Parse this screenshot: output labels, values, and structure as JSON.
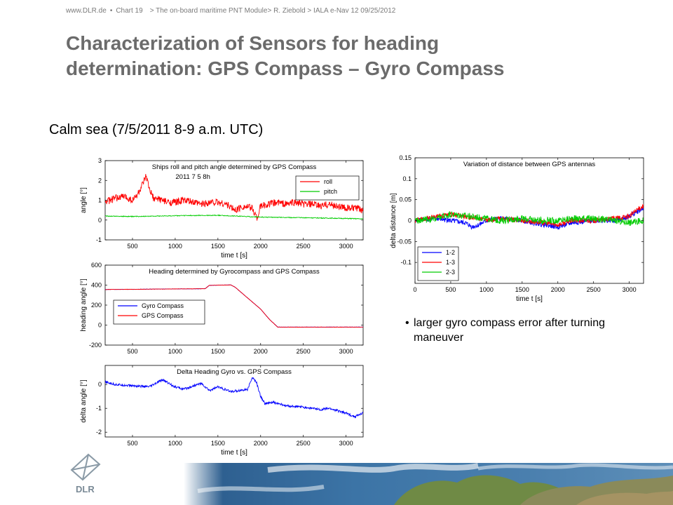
{
  "header": {
    "url": "www.DLR.de",
    "chart": "Chart 19",
    "breadcrumb": "> The on-board maritime PNT Module> R. Ziebold > IALA e-Nav 12 09/25/2012"
  },
  "title": {
    "line1": "Characterization of Sensors for heading",
    "line2": "determination: GPS Compass – Gyro Compass"
  },
  "subtitle": "Calm sea (7/5/2011 8-9 a.m. UTC)",
  "note": {
    "line1": "larger gyro compass error after turning",
    "line2": "maneuver"
  },
  "logo": {
    "text": "DLR",
    "icon": "dlr-logo-icon"
  },
  "colors": {
    "red": "#ff0000",
    "green": "#00cc00",
    "blue": "#0000ff",
    "title_gray": "#6b6b6b"
  },
  "chart_data": [
    {
      "id": "roll_pitch",
      "type": "line",
      "title": "Ships roll and pitch angle determined by GPS Compass",
      "annotation": "2011 7 5 8h",
      "xlabel": "time t [s]",
      "ylabel": "angle [°]",
      "xlim": [
        180,
        3200
      ],
      "ylim": [
        -1,
        3
      ],
      "xticks": [
        500,
        1000,
        1500,
        2000,
        2500,
        3000
      ],
      "yticks": [
        -1,
        0,
        1,
        2,
        3
      ],
      "legend": "right",
      "grid": false,
      "series": [
        {
          "name": "roll",
          "color": "#ff0000",
          "noise": 0.18,
          "x": [
            180,
            300,
            400,
            500,
            560,
            620,
            660,
            700,
            760,
            800,
            900,
            1000,
            1100,
            1200,
            1300,
            1400,
            1500,
            1600,
            1700,
            1800,
            1900,
            1960,
            2000,
            2100,
            2200,
            2300,
            2400,
            2500,
            2600,
            2700,
            2800,
            2900,
            3000,
            3100,
            3200
          ],
          "y": [
            0.9,
            1.1,
            1.2,
            1.0,
            1.3,
            1.8,
            2.2,
            1.5,
            1.0,
            1.1,
            0.9,
            0.9,
            1.0,
            0.9,
            0.8,
            0.9,
            0.9,
            0.8,
            0.5,
            0.7,
            0.6,
            0.1,
            0.7,
            0.8,
            0.9,
            0.8,
            0.9,
            0.8,
            0.8,
            0.7,
            0.8,
            0.7,
            0.6,
            0.6,
            0.5
          ]
        },
        {
          "name": "pitch",
          "color": "#00cc00",
          "noise": 0.02,
          "x": [
            180,
            500,
            1000,
            1500,
            2000,
            2500,
            3000,
            3200
          ],
          "y": [
            0.2,
            0.18,
            0.22,
            0.24,
            0.15,
            0.12,
            0.08,
            0.06
          ]
        }
      ]
    },
    {
      "id": "heading",
      "type": "line",
      "title": "Heading determined by Gyrocompass and GPS Compass",
      "xlabel": "",
      "ylabel": "heading angle [°]",
      "xlim": [
        180,
        3200
      ],
      "ylim": [
        -200,
        600
      ],
      "xticks": [
        500,
        1000,
        1500,
        2000,
        2500,
        3000
      ],
      "yticks": [
        -200,
        0,
        200,
        400,
        600
      ],
      "legend": "left",
      "grid": false,
      "series": [
        {
          "name": "Gyro Compass",
          "color": "#0000ff",
          "noise": 1.5,
          "x": [
            180,
            500,
            1000,
            1350,
            1400,
            1650,
            1700,
            2000,
            2100,
            2200,
            2500,
            3000,
            3200
          ],
          "y": [
            356,
            358,
            362,
            364,
            398,
            402,
            380,
            160,
            60,
            -20,
            -20,
            -20,
            -20
          ]
        },
        {
          "name": "GPS Compass",
          "color": "#ff0000",
          "noise": 1.5,
          "x": [
            180,
            500,
            1000,
            1350,
            1400,
            1650,
            1700,
            2000,
            2100,
            2200,
            2500,
            3000,
            3200
          ],
          "y": [
            356,
            358,
            362,
            364,
            398,
            402,
            380,
            160,
            60,
            -20,
            -20,
            -20,
            -20
          ]
        }
      ]
    },
    {
      "id": "delta_heading",
      "type": "line",
      "title": "Delta Heading Gyro vs. GPS Compass",
      "xlabel": "time t [s]",
      "ylabel": "delta angle [°]",
      "xlim": [
        180,
        3200
      ],
      "ylim": [
        -2.2,
        0.8
      ],
      "xticks": [
        500,
        1000,
        1500,
        2000,
        2500,
        3000
      ],
      "yticks": [
        -2,
        -1,
        0
      ],
      "legend": "none",
      "grid": false,
      "series": [
        {
          "name": "",
          "color": "#0000ff",
          "noise": 0.05,
          "x": [
            180,
            300,
            500,
            700,
            850,
            1000,
            1100,
            1300,
            1400,
            1500,
            1650,
            1750,
            1850,
            1900,
            1950,
            2000,
            2050,
            2150,
            2300,
            2500,
            2700,
            2800,
            2900,
            3000,
            3100,
            3200
          ],
          "y": [
            0.1,
            0.0,
            -0.05,
            -0.1,
            0.2,
            -0.1,
            -0.2,
            0.05,
            -0.25,
            -0.1,
            -0.3,
            -0.25,
            -0.2,
            0.3,
            0.1,
            -0.5,
            -0.8,
            -0.75,
            -0.9,
            -0.95,
            -1.05,
            -1.0,
            -1.1,
            -1.2,
            -1.35,
            -1.2
          ]
        }
      ]
    },
    {
      "id": "antenna_distance",
      "type": "line",
      "title": "Variation of distance between GPS antennas",
      "xlabel": "time t [s]",
      "ylabel": "delta distance [m]",
      "xlim": [
        0,
        3200
      ],
      "ylim": [
        -0.15,
        0.15
      ],
      "xticks": [
        0,
        500,
        1000,
        1500,
        2000,
        2500,
        3000
      ],
      "yticks": [
        -0.1,
        -0.05,
        0,
        0.05,
        0.1,
        0.15
      ],
      "legend": "bottom-left",
      "grid": false,
      "series": [
        {
          "name": "1-2",
          "color": "#0000ff",
          "noise": 0.006,
          "x": [
            0,
            300,
            500,
            700,
            800,
            900,
            1000,
            1200,
            1500,
            1800,
            2000,
            2200,
            2500,
            2800,
            3000,
            3100,
            3200
          ],
          "y": [
            0.0,
            0.005,
            0.0,
            -0.005,
            -0.015,
            -0.01,
            0.0,
            0.005,
            0.0,
            -0.01,
            -0.015,
            -0.005,
            0.0,
            0.0,
            0.01,
            0.02,
            0.03
          ]
        },
        {
          "name": "1-3",
          "color": "#ff0000",
          "noise": 0.006,
          "x": [
            0,
            300,
            500,
            700,
            900,
            1000,
            1200,
            1500,
            1800,
            2000,
            2200,
            2500,
            2800,
            3000,
            3100,
            3200
          ],
          "y": [
            0.0,
            0.01,
            0.015,
            0.01,
            0.005,
            0.0,
            0.005,
            0.0,
            -0.005,
            -0.01,
            0.0,
            0.0,
            0.005,
            0.01,
            0.025,
            0.035
          ]
        },
        {
          "name": "2-3",
          "color": "#00cc00",
          "noise": 0.008,
          "x": [
            0,
            300,
            500,
            800,
            1000,
            1200,
            1500,
            1800,
            2000,
            2200,
            2500,
            2800,
            3000,
            3200
          ],
          "y": [
            0.0,
            0.005,
            0.015,
            0.01,
            0.005,
            0.0,
            0.005,
            0.0,
            0.0,
            0.005,
            0.005,
            0.0,
            -0.005,
            0.0
          ]
        }
      ]
    }
  ]
}
